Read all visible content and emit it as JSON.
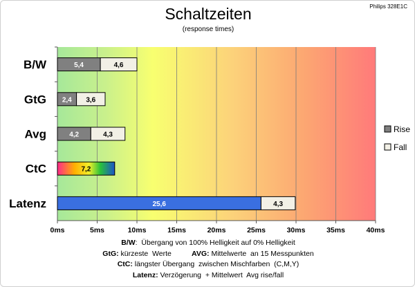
{
  "chart_data": {
    "type": "bar",
    "orientation": "horizontal",
    "stacked": true,
    "title": "Schaltzeiten",
    "subtitle": "(response times)",
    "model": "Philips 328E1C",
    "categories": [
      "B/W",
      "GtG",
      "Avg",
      "CtC",
      "Latenz"
    ],
    "series": [
      {
        "name": "Rise",
        "values": [
          "5,4",
          "2,4",
          "4,2",
          "7,2",
          "25,6"
        ],
        "numeric": [
          5.4,
          2.4,
          4.2,
          7.2,
          25.6
        ],
        "color": "#808080"
      },
      {
        "name": "Fall",
        "values": [
          "4,6",
          "3,6",
          "4,3",
          "",
          "4,3"
        ],
        "numeric": [
          4.6,
          3.6,
          4.3,
          0,
          4.3
        ],
        "color": "#f2f0e6"
      }
    ],
    "special_colors": {
      "CtC": "rainbow",
      "Latenz_rise": "#3a6fe0"
    },
    "xlim": [
      0,
      40
    ],
    "xticks": [
      "0ms",
      "5ms",
      "10ms",
      "15ms",
      "20ms",
      "25ms",
      "30ms",
      "35ms",
      "40ms"
    ],
    "grid": true,
    "background": "gradient green-yellow-red",
    "legend_position": "right"
  },
  "notes": [
    {
      "parts": [
        {
          "b": "B/W"
        },
        {
          "t": ":  Übergang von 100% Helligkeit auf 0% Helligkeit"
        }
      ]
    },
    {
      "parts": [
        {
          "b": "GtG:"
        },
        {
          "t": " kürzeste  Werte          "
        },
        {
          "b": "AVG:"
        },
        {
          "t": " Mittelwerte  an 15 Messpunkten"
        }
      ]
    },
    {
      "parts": [
        {
          "b": "CtC:"
        },
        {
          "t": " längster Übergang  zwischen Mischfarben  (C,M,Y)"
        }
      ]
    },
    {
      "parts": [
        {
          "b": "Latenz:"
        },
        {
          "t": " Verzögerung  + Mittelwert  Avg rise/fall"
        }
      ]
    }
  ]
}
